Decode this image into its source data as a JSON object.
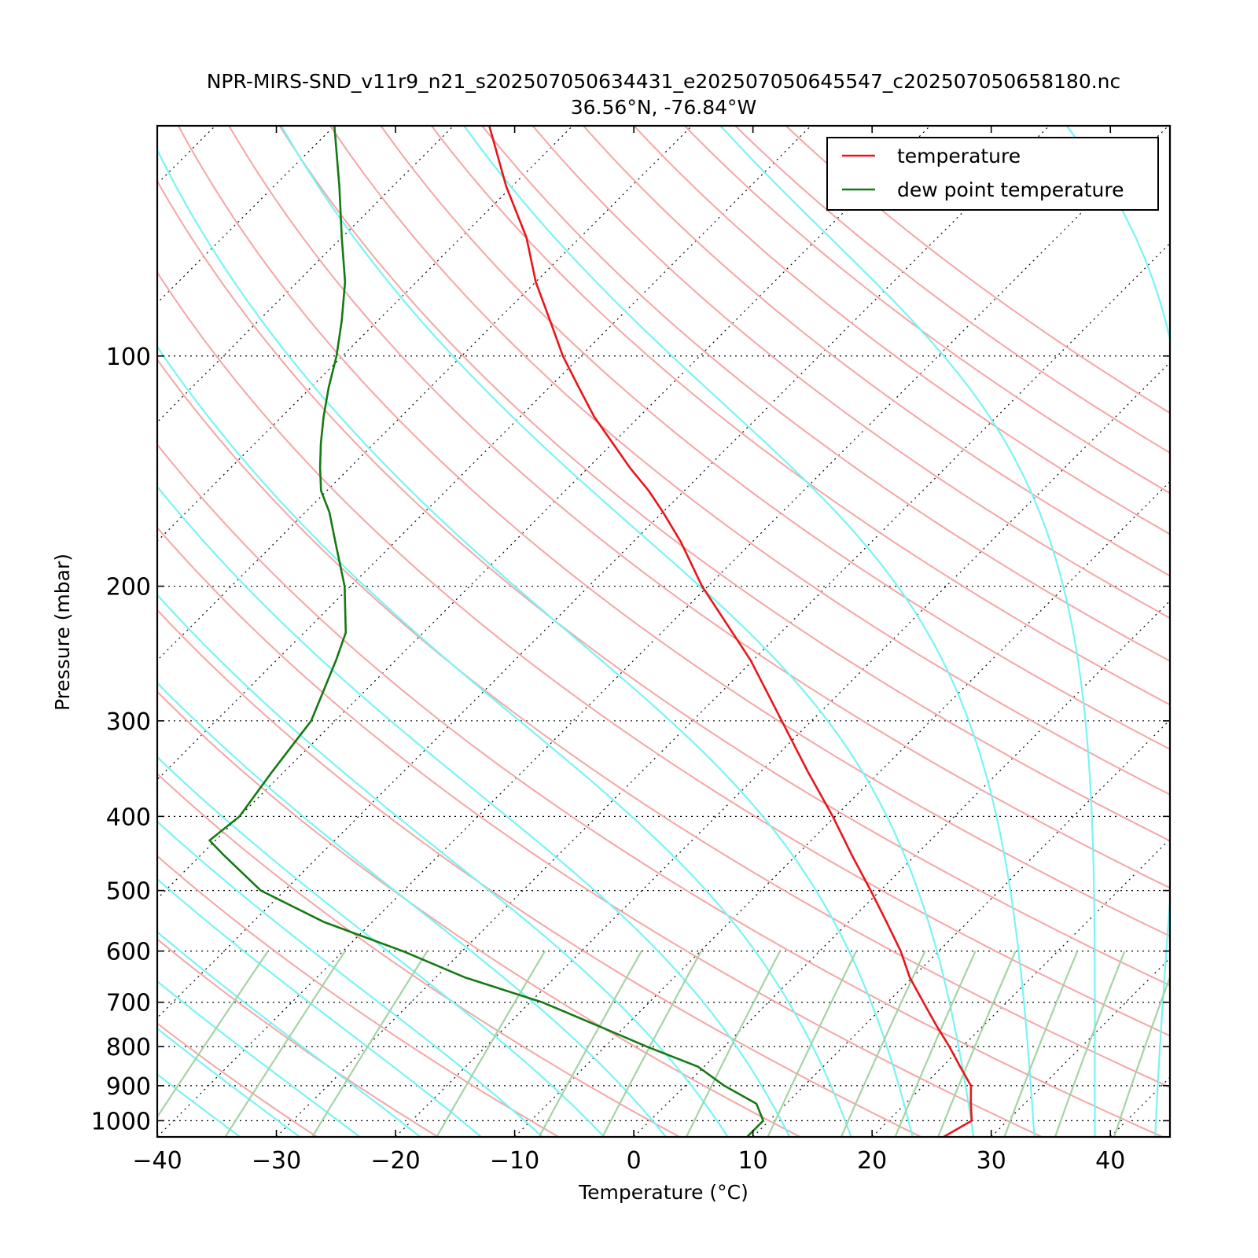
{
  "chart_data": {
    "type": "line",
    "title": "NPR-MIRS-SND_v11r9_n21_s202507050634431_e202507050645547_c202507050658180.nc",
    "subtitle": "36.56°N, -76.84°W",
    "xlabel": "Temperature (°C)",
    "ylabel": "Pressure (mbar)",
    "xlim": [
      -40,
      45
    ],
    "ylim": [
      1050,
      50
    ],
    "y_scale": "log",
    "grid": true,
    "legend_position": "top-right",
    "x_ticks": [
      {
        "value": -40,
        "label": "−40"
      },
      {
        "value": -30,
        "label": "−30"
      },
      {
        "value": -20,
        "label": "−20"
      },
      {
        "value": -10,
        "label": "−10"
      },
      {
        "value": 0,
        "label": "0"
      },
      {
        "value": 10,
        "label": "10"
      },
      {
        "value": 20,
        "label": "20"
      },
      {
        "value": 30,
        "label": "30"
      },
      {
        "value": 40,
        "label": "40"
      }
    ],
    "y_ticks": [
      {
        "value": 100,
        "label": "100"
      },
      {
        "value": 200,
        "label": "200"
      },
      {
        "value": 300,
        "label": "300"
      },
      {
        "value": 400,
        "label": "400"
      },
      {
        "value": 500,
        "label": "500"
      },
      {
        "value": 600,
        "label": "600"
      },
      {
        "value": 700,
        "label": "700"
      },
      {
        "value": 800,
        "label": "800"
      },
      {
        "value": 900,
        "label": "900"
      },
      {
        "value": 1000,
        "label": "1000"
      }
    ],
    "series": [
      {
        "name": "temperature",
        "color": "#e8161b",
        "pressure": [
          1050,
          1000,
          950,
          900,
          850,
          800,
          750,
          700,
          650,
          600,
          550,
          500,
          450,
          400,
          350,
          300,
          250,
          200,
          175,
          160,
          150,
          140,
          130,
          120,
          110,
          100,
          90,
          80,
          70,
          60,
          50
        ],
        "temperature": [
          26.0,
          27.0,
          25.5,
          24.0,
          21.5,
          18.9,
          16.0,
          13.0,
          9.8,
          6.8,
          3.2,
          -0.8,
          -5.3,
          -10.2,
          -16.0,
          -22.5,
          -30.2,
          -40.5,
          -46.0,
          -50.0,
          -53.0,
          -56.5,
          -60.0,
          -63.8,
          -67.5,
          -71.5,
          -75.5,
          -80.0,
          -84.5,
          -90.5,
          -97.0
        ]
      },
      {
        "name": "dew point temperature",
        "color": "#147a14",
        "pressure": [
          1050,
          1000,
          950,
          900,
          850,
          800,
          750,
          700,
          650,
          600,
          550,
          500,
          450,
          430,
          400,
          350,
          300,
          250,
          230,
          200,
          175,
          160,
          150,
          140,
          130,
          120,
          110,
          100,
          90,
          80,
          70,
          60,
          50
        ],
        "temperature": [
          9.5,
          9.5,
          7.5,
          3.3,
          -0.5,
          -6.5,
          -12.5,
          -19.0,
          -27.5,
          -35.0,
          -44.0,
          -52.0,
          -58.0,
          -60.5,
          -60.0,
          -61.0,
          -62.0,
          -65.0,
          -66.5,
          -70.5,
          -75.0,
          -78.0,
          -80.5,
          -82.5,
          -84.5,
          -86.5,
          -88.5,
          -90.5,
          -93.0,
          -96.0,
          -100.0,
          -104.5,
          -110.0
        ]
      }
    ]
  }
}
